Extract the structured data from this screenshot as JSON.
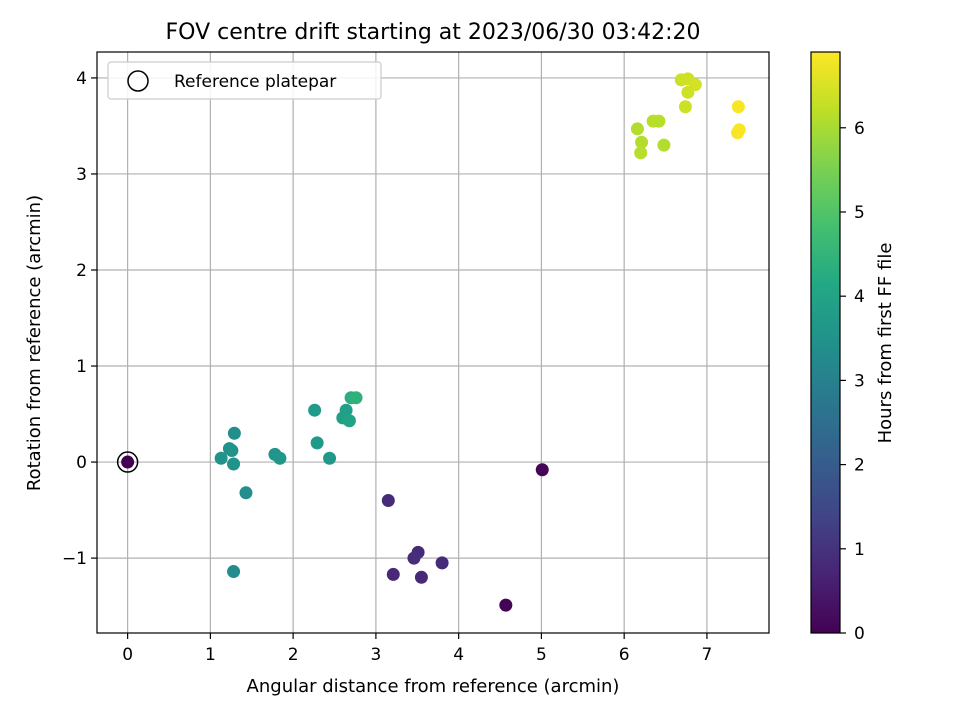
{
  "chart_data": {
    "type": "scatter",
    "title": "FOV centre drift starting at 2023/06/30 03:42:20",
    "xlabel": "Angular distance from reference (arcmin)",
    "ylabel": "Rotation from reference (arcmin)",
    "xlim": [
      -0.37,
      7.75
    ],
    "ylim": [
      -1.78,
      4.27
    ],
    "xticks": [
      0,
      1,
      2,
      3,
      4,
      5,
      6,
      7
    ],
    "yticks": [
      -1,
      0,
      1,
      2,
      3,
      4
    ],
    "ytick_labels": [
      "−1",
      "0",
      "1",
      "2",
      "3",
      "4"
    ],
    "grid": true,
    "legend": {
      "placement": "top-left",
      "entries": [
        "Reference platepar"
      ]
    },
    "reference_point": {
      "x": 0,
      "y": 0
    },
    "colorbar": {
      "label": "Hours from first FF file",
      "range": [
        0,
        6.9
      ],
      "ticks": [
        0,
        1,
        2,
        3,
        4,
        5,
        6
      ],
      "colormap": "viridis"
    },
    "points": [
      {
        "x": 0.0,
        "y": 0.0,
        "c": 0.0
      },
      {
        "x": 4.57,
        "y": -1.49,
        "c": 0.05
      },
      {
        "x": 5.01,
        "y": -0.08,
        "c": 0.1
      },
      {
        "x": 3.8,
        "y": -1.05,
        "c": 0.85
      },
      {
        "x": 3.55,
        "y": -1.2,
        "c": 0.8
      },
      {
        "x": 3.51,
        "y": -0.94,
        "c": 0.85
      },
      {
        "x": 3.46,
        "y": -1.0,
        "c": 0.9
      },
      {
        "x": 3.21,
        "y": -1.17,
        "c": 0.8
      },
      {
        "x": 3.15,
        "y": -0.4,
        "c": 0.85
      },
      {
        "x": 1.28,
        "y": -1.14,
        "c": 3.3
      },
      {
        "x": 1.43,
        "y": -0.32,
        "c": 3.4
      },
      {
        "x": 1.29,
        "y": 0.3,
        "c": 3.4
      },
      {
        "x": 1.23,
        "y": 0.14,
        "c": 3.45
      },
      {
        "x": 1.26,
        "y": 0.12,
        "c": 3.5
      },
      {
        "x": 1.13,
        "y": 0.04,
        "c": 3.5
      },
      {
        "x": 1.28,
        "y": -0.02,
        "c": 3.5
      },
      {
        "x": 1.78,
        "y": 0.08,
        "c": 3.55
      },
      {
        "x": 1.84,
        "y": 0.04,
        "c": 3.6
      },
      {
        "x": 2.44,
        "y": 0.04,
        "c": 3.7
      },
      {
        "x": 2.29,
        "y": 0.2,
        "c": 3.7
      },
      {
        "x": 2.26,
        "y": 0.54,
        "c": 3.75
      },
      {
        "x": 2.6,
        "y": 0.46,
        "c": 3.85
      },
      {
        "x": 2.64,
        "y": 0.54,
        "c": 3.9
      },
      {
        "x": 2.68,
        "y": 0.43,
        "c": 4.0
      },
      {
        "x": 2.7,
        "y": 0.67,
        "c": 4.3
      },
      {
        "x": 2.76,
        "y": 0.67,
        "c": 4.4
      },
      {
        "x": 6.16,
        "y": 3.47,
        "c": 6.1
      },
      {
        "x": 6.21,
        "y": 3.33,
        "c": 6.1
      },
      {
        "x": 6.2,
        "y": 3.22,
        "c": 6.15
      },
      {
        "x": 6.35,
        "y": 3.55,
        "c": 6.15
      },
      {
        "x": 6.42,
        "y": 3.55,
        "c": 6.15
      },
      {
        "x": 6.48,
        "y": 3.3,
        "c": 6.1
      },
      {
        "x": 6.69,
        "y": 3.98,
        "c": 6.35
      },
      {
        "x": 6.77,
        "y": 3.99,
        "c": 6.4
      },
      {
        "x": 6.86,
        "y": 3.93,
        "c": 6.45
      },
      {
        "x": 6.77,
        "y": 3.85,
        "c": 6.4
      },
      {
        "x": 6.74,
        "y": 3.7,
        "c": 6.35
      },
      {
        "x": 7.38,
        "y": 3.7,
        "c": 6.85
      },
      {
        "x": 7.39,
        "y": 3.46,
        "c": 6.85
      },
      {
        "x": 7.37,
        "y": 3.43,
        "c": 6.85
      }
    ]
  }
}
